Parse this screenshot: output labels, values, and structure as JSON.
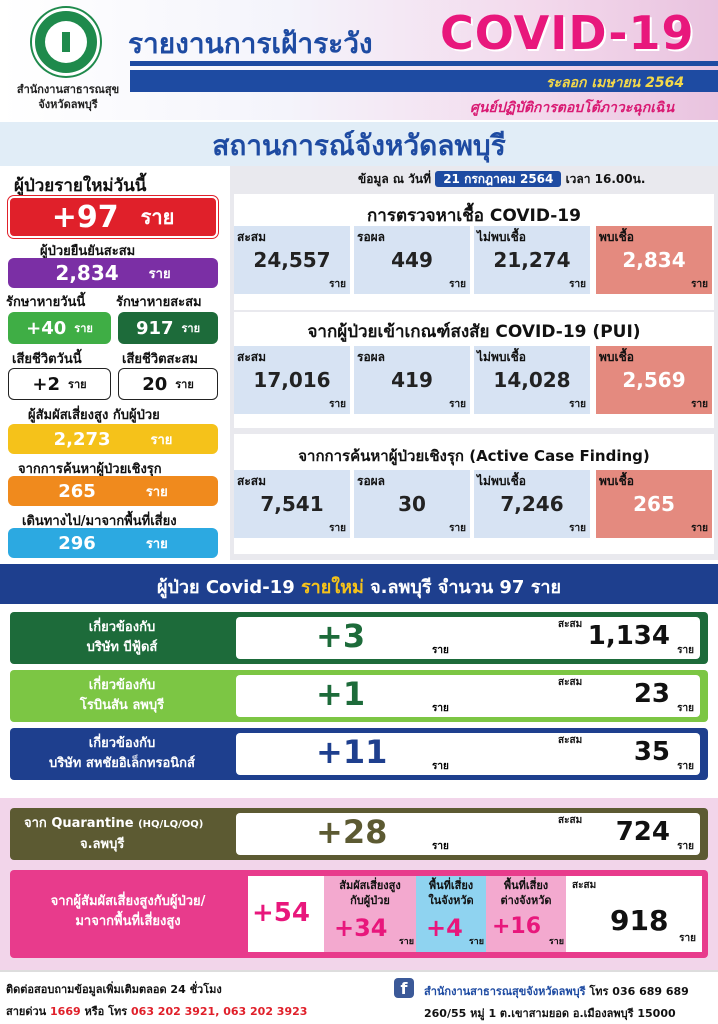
{
  "header": {
    "org_line1": "สำนักงานสาธารณสุข",
    "org_line2": "จังหวัดลพบุรี",
    "title": "รายงานการเฝ้าระวัง",
    "title_covid": "COVID-19",
    "wave": "ระลอก เมษายน 2564",
    "eoc": "ศูนย์ปฏิบัติการตอบโต้ภาวะฉุกเฉิน"
  },
  "situation_title": "สถานการณ์จังหวัดลพบุรี",
  "left": {
    "new_today_label": "ผู้ป่วยรายใหม่วันนี้",
    "new_today": "+97",
    "unit": "ราย",
    "confirmed_total_label": "ผู้ป่วยยืนยันสะสม",
    "confirmed_total": "2,834",
    "recovered_today_label": "รักษาหายวันนี้",
    "recovered_total_label": "รักษาหายสะสม",
    "recovered_today": "+40",
    "recovered_total": "917",
    "death_today_label": "เสียชีวิตวันนี้",
    "death_total_label": "เสียชีวิตสะสม",
    "death_today": "+2",
    "death_total": "20",
    "contact_label": "ผู้สัมผัสเสี่ยงสูง กับผู้ป่วย",
    "contact": "2,273",
    "acf_label": "จากการค้นหาผู้ป่วยเชิงรุก",
    "acf": "265",
    "travel_label": "เดินทางไป/มาจากพื้นที่เสี่ยง",
    "travel": "296"
  },
  "date": {
    "prefix": "ข้อมูล ณ วันที่",
    "date": "21 กรกฎาคม 2564",
    "time": "เวลา 16.00น."
  },
  "card_labels": {
    "total": "สะสม",
    "pending": "รอผล",
    "negative": "ไม่พบเชื้อ",
    "positive": "พบเชื้อ",
    "unit": "ราย"
  },
  "sections": [
    {
      "title": "การตรวจหาเชื้อ COVID-19",
      "total": "24,557",
      "pending": "449",
      "negative": "21,274",
      "positive": "2,834"
    },
    {
      "title": "จากผู้ป่วยเข้าเกณฑ์สงสัย COVID-19 (PUI)",
      "total": "17,016",
      "pending": "419",
      "negative": "14,028",
      "positive": "2,569"
    },
    {
      "title": "จากการค้นหาผู้ป่วยเชิงรุก (Active Case Finding)",
      "total": "7,541",
      "pending": "30",
      "negative": "7,246",
      "positive": "265"
    }
  ],
  "new_cases_banner": {
    "pre": "ผู้ป่วย Covid-19",
    "highlight": "รายใหม่",
    "post": "จ.ลพบุรี จำนวน 97 ราย"
  },
  "clusters": [
    {
      "line1": "เกี่ยวข้องกับ",
      "line2": "บริษัท บีฟู้ดส์",
      "new": "+3",
      "total": "1,134"
    },
    {
      "line1": "เกี่ยวข้องกับ",
      "line2": "โรบินสัน ลพบุรี",
      "new": "+1",
      "total": "23"
    },
    {
      "line1": "เกี่ยวข้องกับ",
      "line2": "บริษัท สหชัยอิเล็กทรอนิกส์",
      "new": "+11",
      "total": "35"
    }
  ],
  "quarantine": {
    "line1": "จาก Quarantine",
    "line1_small": "(HQ/LQ/OQ)",
    "line2": "จ.ลพบุรี",
    "new": "+28",
    "total": "724"
  },
  "contact_box": {
    "line1": "จากผู้สัมผัสเสี่ยงสูงกับผู้ป่วย/",
    "line2": "มาจากพื้นที่เสี่ยงสูง",
    "new": "+54",
    "c1_label1": "สัมผัสเสี่ยงสูง",
    "c1_label2": "กับผู้ป่วย",
    "c1": "+34",
    "c2_label1": "พื้นที่เสี่ยง",
    "c2_label2": "ในจังหวัด",
    "c2": "+4",
    "c3_label1": "พื้นที่เสี่ยง",
    "c3_label2": "ต่างจังหวัด",
    "c3": "+16",
    "total": "918"
  },
  "footer": {
    "l1": "ติดต่อสอบถามข้อมูลเพิ่มเติมตลอด 24 ชั่วโมง",
    "l2a": "สายด่วน",
    "l2b": "1669",
    "l2c": "หรือ โทร",
    "l2d": "063 202 3921, 063 202 3923",
    "r1": "สำนักงานสาธารณสุขจังหวัดลพบุรี",
    "r1b": "โทร 036 689 689",
    "r2": "260/55 หมู่ 1 ต.เขาสามยอด อ.เมืองลพบุรี 15000"
  },
  "colors": {
    "blue": "#1e4ba2",
    "pink": "#e8177c",
    "red": "#e0202a",
    "purple": "#7b2fa5",
    "green": "#3fae45",
    "darkgreen": "#1d6b3a",
    "yellow": "#f5c21a",
    "orange": "#f08a1d",
    "cyan": "#2ca9e1",
    "olive": "#5c5a32"
  }
}
